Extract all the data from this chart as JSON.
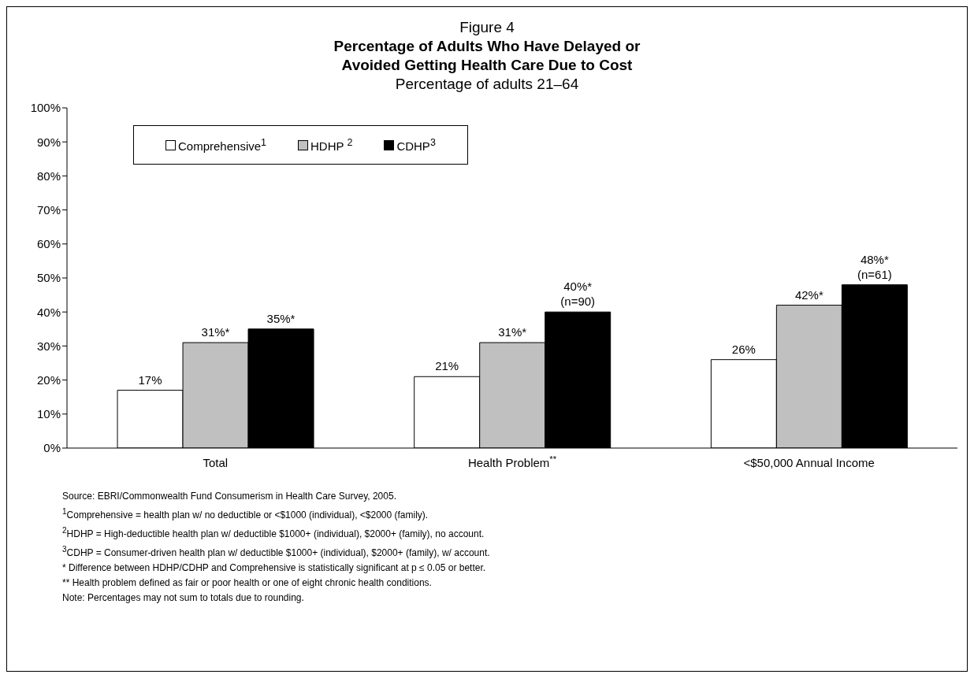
{
  "chart_data": {
    "type": "bar",
    "title": "Figure 4\nPercentage of Adults Who Have Delayed or\nAvoided Getting Health Care Due to Cost",
    "subtitle": "Percentage of adults 21–64",
    "categories": [
      "Total",
      "Health Problem$^{**}$",
      "<$50,000 Annual Income"
    ],
    "series": [
      {
        "name": "Comprehensive$^{1}$",
        "color": "#ffffff",
        "values": [
          17,
          21,
          26
        ],
        "value_labels": [
          "17%",
          "21%",
          "26%"
        ]
      },
      {
        "name": "HDHP $^{2}$",
        "color": "#c0c0c0",
        "values": [
          31,
          31,
          42
        ],
        "value_labels": [
          "31%*",
          "31%*",
          "42%*"
        ]
      },
      {
        "name": "CDHP$^{3}$",
        "color": "#000000",
        "values": [
          35,
          40,
          48
        ],
        "value_labels": [
          "35%*",
          "40%*\n(n=90)",
          "48%*\n(n=61)"
        ]
      }
    ],
    "ylim": [
      0,
      100
    ],
    "yticks": [
      {
        "value": 0,
        "label": "0%"
      },
      {
        "value": 10,
        "label": "10%"
      },
      {
        "value": 20,
        "label": "20%"
      },
      {
        "value": 30,
        "label": "30%"
      },
      {
        "value": 40,
        "label": "40%"
      },
      {
        "value": 50,
        "label": "50%"
      },
      {
        "value": 60,
        "label": "60%"
      },
      {
        "value": 70,
        "label": "70%"
      },
      {
        "value": 80,
        "label": "80%"
      },
      {
        "value": 90,
        "label": "90%"
      },
      {
        "value": 100,
        "label": "100%"
      }
    ],
    "grid": false,
    "legend": "top left",
    "annotations": [
      "Source: EBRI/Commonwealth Fund Consumerism in Health Care Survey, 2005.",
      "$^{1}$Comprehensive = health plan w/ no deductible or <$1000 (individual), <$2000 (family).",
      "$^{2}$HDHP = High-deductible health plan w/ deductible $1000+ (individual), $2000+ (family), no account.",
      "$^{3}$CDHP = Consumer-driven health plan w/ deductible $1000+ (individual), $2000+ (family), w/ account.",
      "* Difference between HDHP/CDHP and Comprehensive is statistically significant at p ≤ 0.05 or better.",
      "** Health problem defined as fair or poor health or one of eight chronic health conditions.",
      "Note: Percentages may not sum to totals due to rounding."
    ]
  }
}
